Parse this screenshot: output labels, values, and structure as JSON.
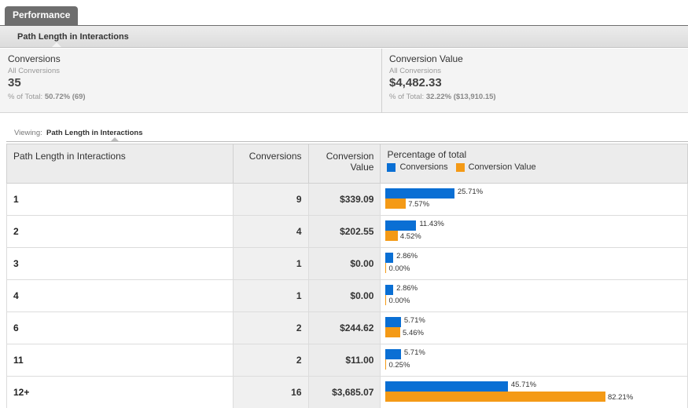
{
  "tab": {
    "label": "Performance"
  },
  "subheader": {
    "label": "Path Length in Interactions"
  },
  "summary": [
    {
      "name": "Conversions",
      "sub": "All Conversions",
      "value": "35",
      "pct_prefix": "% of Total: ",
      "pct_value": "50.72% (69)"
    },
    {
      "name": "Conversion Value",
      "sub": "All Conversions",
      "value": "$4,482.33",
      "pct_prefix": "% of Total: ",
      "pct_value": "32.22% ($13,910.15)"
    }
  ],
  "viewing": {
    "prefix": "Viewing:",
    "value": "Path Length in Interactions"
  },
  "table": {
    "headers": {
      "path": "Path Length in Interactions",
      "conversions": "Conversions",
      "value_line1": "Conversion",
      "value_line2": "Value",
      "pct": "Percentage of total"
    },
    "legend": {
      "conversions": "Conversions",
      "value": "Conversion Value"
    },
    "colors": {
      "conversions": "#0a6fd4",
      "value": "#f49a16"
    },
    "rows": [
      {
        "path": "1",
        "conversions": "9",
        "value": "$339.09",
        "pct_conv": 25.71,
        "pct_val": 7.57,
        "pct_conv_label": "25.71%",
        "pct_val_label": "7.57%"
      },
      {
        "path": "2",
        "conversions": "4",
        "value": "$202.55",
        "pct_conv": 11.43,
        "pct_val": 4.52,
        "pct_conv_label": "11.43%",
        "pct_val_label": "4.52%"
      },
      {
        "path": "3",
        "conversions": "1",
        "value": "$0.00",
        "pct_conv": 2.86,
        "pct_val": 0.0,
        "pct_conv_label": "2.86%",
        "pct_val_label": "0.00%"
      },
      {
        "path": "4",
        "conversions": "1",
        "value": "$0.00",
        "pct_conv": 2.86,
        "pct_val": 0.0,
        "pct_conv_label": "2.86%",
        "pct_val_label": "0.00%"
      },
      {
        "path": "6",
        "conversions": "2",
        "value": "$244.62",
        "pct_conv": 5.71,
        "pct_val": 5.46,
        "pct_conv_label": "5.71%",
        "pct_val_label": "5.46%"
      },
      {
        "path": "11",
        "conversions": "2",
        "value": "$11.00",
        "pct_conv": 5.71,
        "pct_val": 0.25,
        "pct_conv_label": "5.71%",
        "pct_val_label": "0.25%"
      },
      {
        "path": "12+",
        "conversions": "16",
        "value": "$3,685.07",
        "pct_conv": 45.71,
        "pct_val": 82.21,
        "pct_conv_label": "45.71%",
        "pct_val_label": "82.21%"
      }
    ]
  }
}
